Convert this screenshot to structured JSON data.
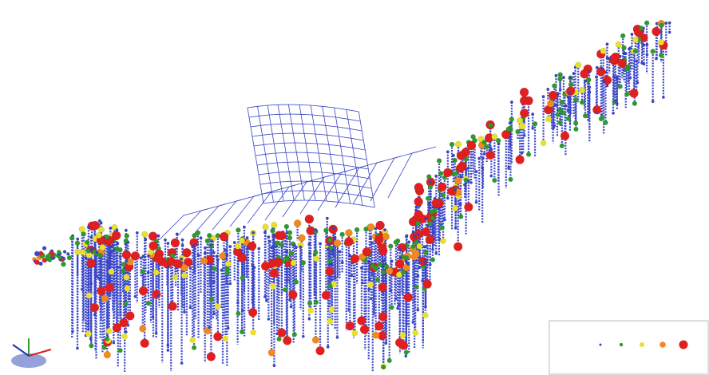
{
  "legend": {
    "items": [
      {
        "color": "#3a46c8"
      },
      {
        "color": "#2e9a2e"
      },
      {
        "color": "#e8e030"
      },
      {
        "color": "#f08a20"
      },
      {
        "color": "#e02020"
      }
    ]
  }
}
